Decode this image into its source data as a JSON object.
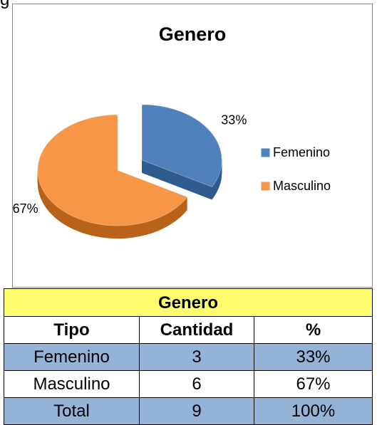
{
  "page_fragment": "g",
  "chart_data": {
    "type": "pie",
    "title": "Genero",
    "categories": [
      "Femenino",
      "Masculino"
    ],
    "values": [
      33,
      67
    ],
    "value_labels": [
      "33%",
      "67%"
    ],
    "colors": [
      "#4f81bd",
      "#f79646"
    ],
    "side_colors": [
      "#2f5c8f",
      "#b8621b"
    ],
    "legend": "right"
  },
  "table": {
    "title": "Genero",
    "header": [
      "Tipo",
      "Cantidad",
      "%"
    ],
    "rows": [
      [
        "Femenino",
        "3",
        "33%"
      ],
      [
        "Masculino",
        "6",
        "67%"
      ],
      [
        "Total",
        "9",
        "100%"
      ]
    ]
  }
}
